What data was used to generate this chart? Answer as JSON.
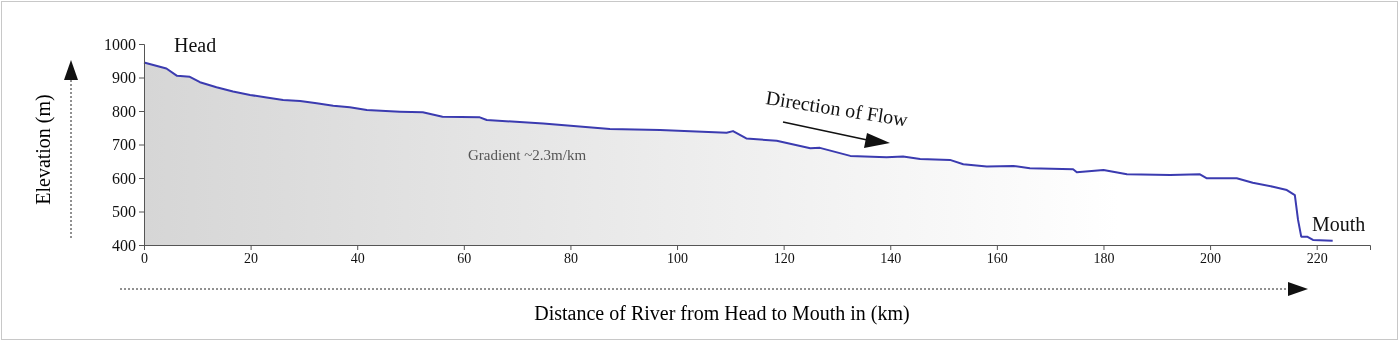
{
  "chart_data": {
    "type": "area",
    "xlabel": "Distance of River from Head to Mouth in (km)",
    "ylabel": "Elevation (m)",
    "annotations": [
      "Head",
      "Mouth",
      "Gradient ~2.3m/km",
      "Direction of Flow"
    ],
    "xlim": [
      0,
      230
    ],
    "ylim": [
      400,
      1000
    ],
    "xticks": [
      0,
      20,
      40,
      60,
      80,
      100,
      120,
      140,
      160,
      180,
      200,
      220
    ],
    "yticks": [
      400,
      500,
      600,
      700,
      800,
      900,
      1000
    ],
    "series": [
      {
        "color": "#3b3bb0",
        "x": [
          0,
          4.2,
          6.2,
          8.6,
          10.5,
          13.6,
          16.7,
          19.9,
          23,
          26.1,
          29.3,
          32.4,
          35.5,
          38.6,
          41.8,
          48,
          52.3,
          56,
          63,
          64.3,
          74.9,
          87.4,
          96.8,
          109.3,
          110.5,
          113,
          118.7,
          125,
          126.8,
          132.5,
          139.3,
          142.4,
          145.6,
          151.2,
          153.7,
          158.1,
          163.1,
          166.2,
          174.3,
          175,
          180,
          184.4,
          192.5,
          198.1,
          199.4,
          205,
          208,
          211.8,
          214.4,
          215.9,
          216.5,
          217.1,
          218.2,
          219.3,
          223
        ],
        "values": [
          945,
          927,
          905,
          902,
          886,
          871,
          858,
          848,
          840,
          833,
          830,
          823,
          816,
          811,
          803,
          798,
          796,
          783,
          781,
          773,
          763,
          746,
          743,
          735,
          740,
          718,
          711,
          689,
          690,
          666,
          662,
          664,
          657,
          654,
          641,
          634,
          636,
          629,
          626,
          617,
          624,
          611,
          609,
          611,
          599,
          599,
          586,
          574,
          564,
          549,
          475,
          425,
          425,
          415,
          413
        ]
      }
    ]
  }
}
